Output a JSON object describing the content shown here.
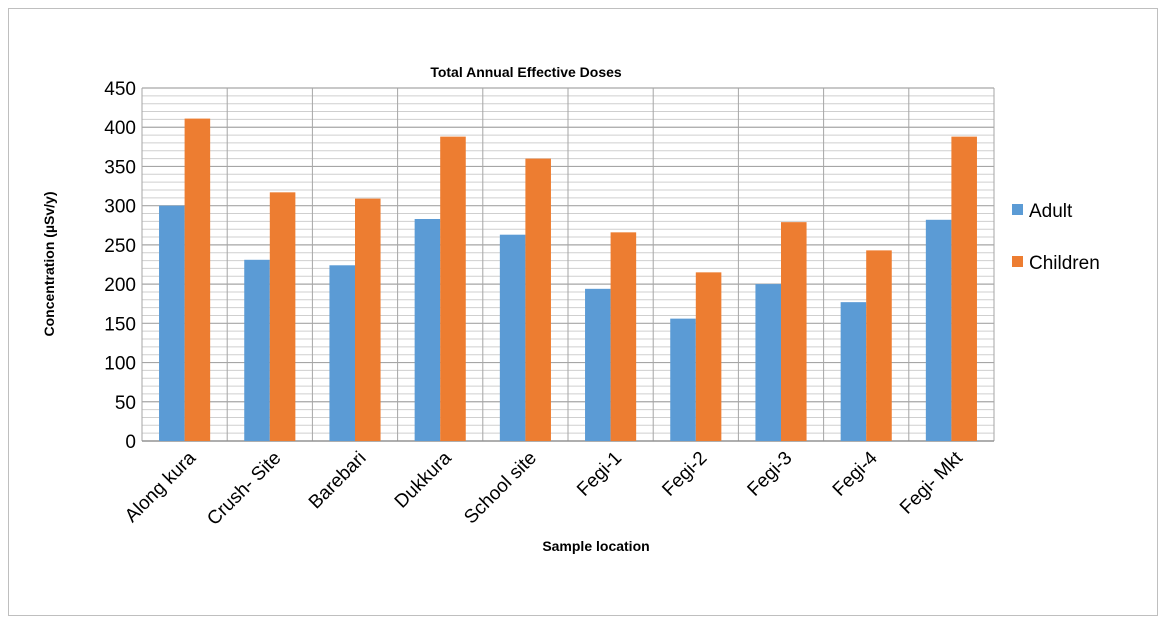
{
  "chart_data": {
    "type": "bar",
    "title": "Total Annual Effective Doses",
    "xlabel": "Sample location",
    "ylabel": "Concentration (µSv/y)",
    "categories": [
      "Along kura",
      "Crush- Site",
      "Barebari",
      "Dukkura",
      "School site",
      "Fegi-1",
      "Fegi-2",
      "Fegi-3",
      "Fegi-4",
      "Fegi- Mkt"
    ],
    "series": [
      {
        "name": "Adult",
        "color": "#5b9bd5",
        "values": [
          300,
          231,
          224,
          283,
          263,
          194,
          156,
          200,
          177,
          282
        ]
      },
      {
        "name": "Children",
        "color": "#ed7d31",
        "values": [
          411,
          317,
          309,
          388,
          360,
          266,
          215,
          279,
          243,
          388
        ]
      }
    ],
    "ylim": [
      0,
      450
    ],
    "yticks": [
      "0",
      "50",
      "100",
      "150",
      "200",
      "250",
      "300",
      "350",
      "400",
      "450"
    ],
    "grid": true,
    "legend": "right"
  }
}
